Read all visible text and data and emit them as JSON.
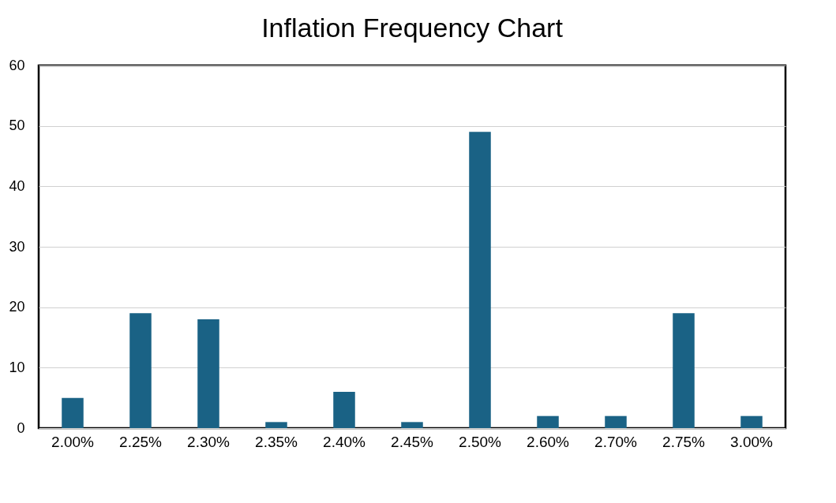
{
  "chart_data": {
    "type": "bar",
    "title": "Inflation Frequency Chart",
    "categories": [
      "2.00%",
      "2.25%",
      "2.30%",
      "2.35%",
      "2.40%",
      "2.45%",
      "2.50%",
      "2.60%",
      "2.70%",
      "2.75%",
      "3.00%"
    ],
    "values": [
      5,
      19,
      18,
      1,
      6,
      1,
      49,
      2,
      2,
      19,
      2
    ],
    "color": "#1a6285",
    "ylim": [
      0,
      60
    ],
    "yticks": [
      0,
      10,
      20,
      30,
      40,
      50,
      60
    ],
    "grid": "y"
  }
}
